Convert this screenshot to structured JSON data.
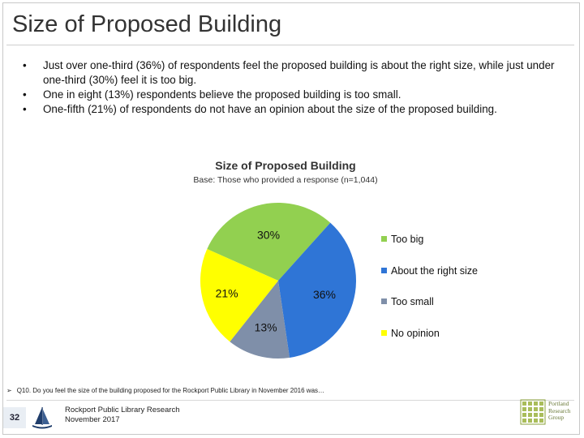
{
  "page": {
    "title": "Size of Proposed Building",
    "bullets": [
      "Just over one-third (36%) of respondents feel the proposed building is about the right size, while just under one-third (30%) feel it is too big.",
      "One in eight (13%) respondents believe the proposed building is too small.",
      "One-fifth (21%) of respondents do not have an opinion about the size of the proposed building."
    ],
    "bullet_symbol": "•"
  },
  "chart_data": {
    "type": "pie",
    "title": "Size of Proposed Building",
    "subtitle": "Base: Those who provided a response (n=1,044)",
    "slices": [
      {
        "label": "Too big",
        "value": 30,
        "display": "30%",
        "color": "#92d050"
      },
      {
        "label": "About the right size",
        "value": 36,
        "display": "36%",
        "color": "#2f75d6"
      },
      {
        "label": "Too small",
        "value": 13,
        "display": "13%",
        "color": "#7f8fa9"
      },
      {
        "label": "No opinion",
        "value": 21,
        "display": "21%",
        "color": "#ffff00"
      }
    ],
    "legend_position": "right"
  },
  "footer": {
    "question_arrow": "➢",
    "question": "Q10. Do you feel the size of the building proposed for the Rockport Public Library in November 2016 was…",
    "page_number": "32",
    "org_line1": "Rockport Public Library Research",
    "org_line2": "November 2017",
    "brand_line1": "Portland",
    "brand_line2": "Research",
    "brand_line3": "Group",
    "brand_color": "#8aa03a"
  }
}
